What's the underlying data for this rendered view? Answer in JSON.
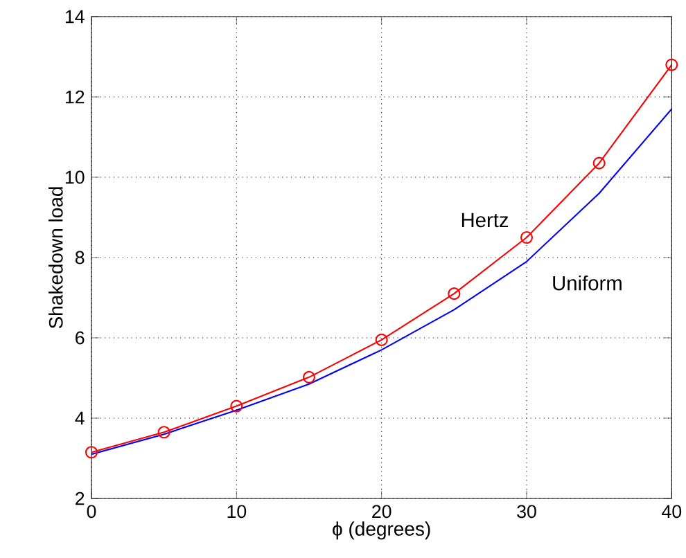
{
  "chart_data": {
    "type": "line",
    "xlabel": "ϕ (degrees)",
    "ylabel": "Shakedown load",
    "xlim": [
      0,
      40
    ],
    "ylim": [
      2,
      14
    ],
    "xticks": [
      0,
      10,
      20,
      30,
      40
    ],
    "yticks": [
      2,
      4,
      6,
      8,
      10,
      12,
      14
    ],
    "grid": true,
    "series": [
      {
        "color": "#ff0000",
        "marker": "circle",
        "x": [
          0,
          5,
          10,
          15,
          20,
          25,
          30,
          35,
          40
        ],
        "values": [
          3.15,
          3.65,
          4.3,
          5.02,
          5.95,
          7.1,
          8.5,
          10.35,
          12.8
        ]
      },
      {
        "color": "#0000ff",
        "marker": "none",
        "x": [
          0,
          5,
          10,
          15,
          20,
          25,
          30,
          35,
          40
        ],
        "values": [
          3.1,
          3.6,
          4.2,
          4.85,
          5.7,
          6.7,
          7.9,
          9.6,
          11.7
        ]
      }
    ],
    "annotations": [
      "Hertz",
      "Uniform"
    ]
  }
}
